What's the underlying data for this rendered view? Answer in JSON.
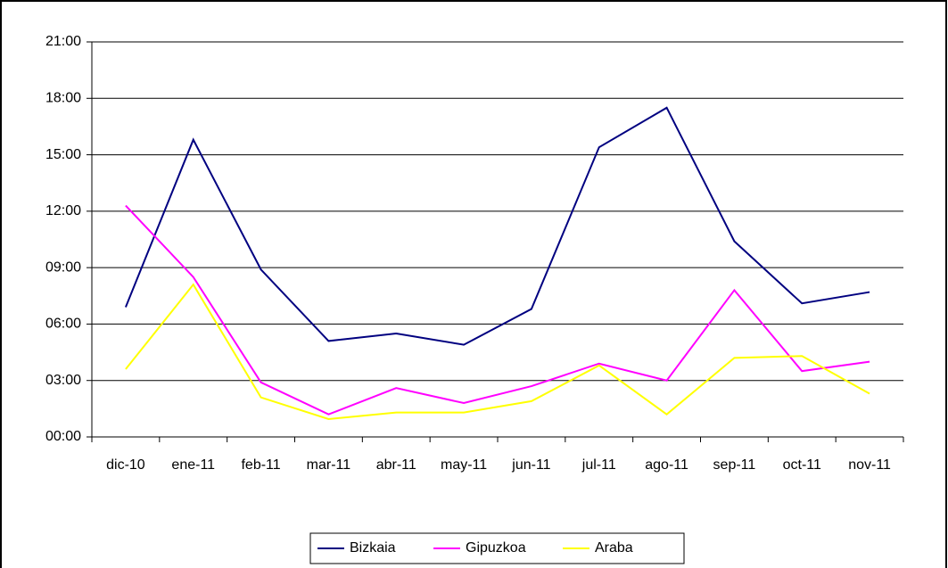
{
  "chart_data": {
    "type": "line",
    "categories": [
      "dic-10",
      "ene-11",
      "feb-11",
      "mar-11",
      "abr-11",
      "may-11",
      "jun-11",
      "jul-11",
      "ago-11",
      "sep-11",
      "oct-11",
      "nov-11"
    ],
    "series": [
      {
        "name": "Bizkaia",
        "color": "#000080",
        "values": [
          6.9,
          15.8,
          8.9,
          5.1,
          5.5,
          4.9,
          6.8,
          15.4,
          17.5,
          10.4,
          7.1,
          7.7
        ]
      },
      {
        "name": "Gipuzkoa",
        "color": "#ff00ff",
        "values": [
          12.3,
          8.5,
          2.9,
          1.2,
          2.6,
          1.8,
          2.7,
          3.9,
          3.0,
          7.8,
          3.5,
          4.0
        ]
      },
      {
        "name": "Araba",
        "color": "#ffff00",
        "values": [
          3.6,
          8.1,
          2.1,
          0.95,
          1.3,
          1.3,
          1.9,
          3.8,
          1.2,
          4.2,
          4.3,
          2.3
        ]
      }
    ],
    "ylim": [
      0,
      21
    ],
    "yticks": [
      {
        "value": 0,
        "label": "00:00"
      },
      {
        "value": 3,
        "label": "03:00"
      },
      {
        "value": 6,
        "label": "06:00"
      },
      {
        "value": 9,
        "label": "09:00"
      },
      {
        "value": 12,
        "label": "12:00"
      },
      {
        "value": 15,
        "label": "15:00"
      },
      {
        "value": 18,
        "label": "18:00"
      },
      {
        "value": 21,
        "label": "21:00"
      }
    ],
    "grid": true,
    "legend": "bottom"
  }
}
